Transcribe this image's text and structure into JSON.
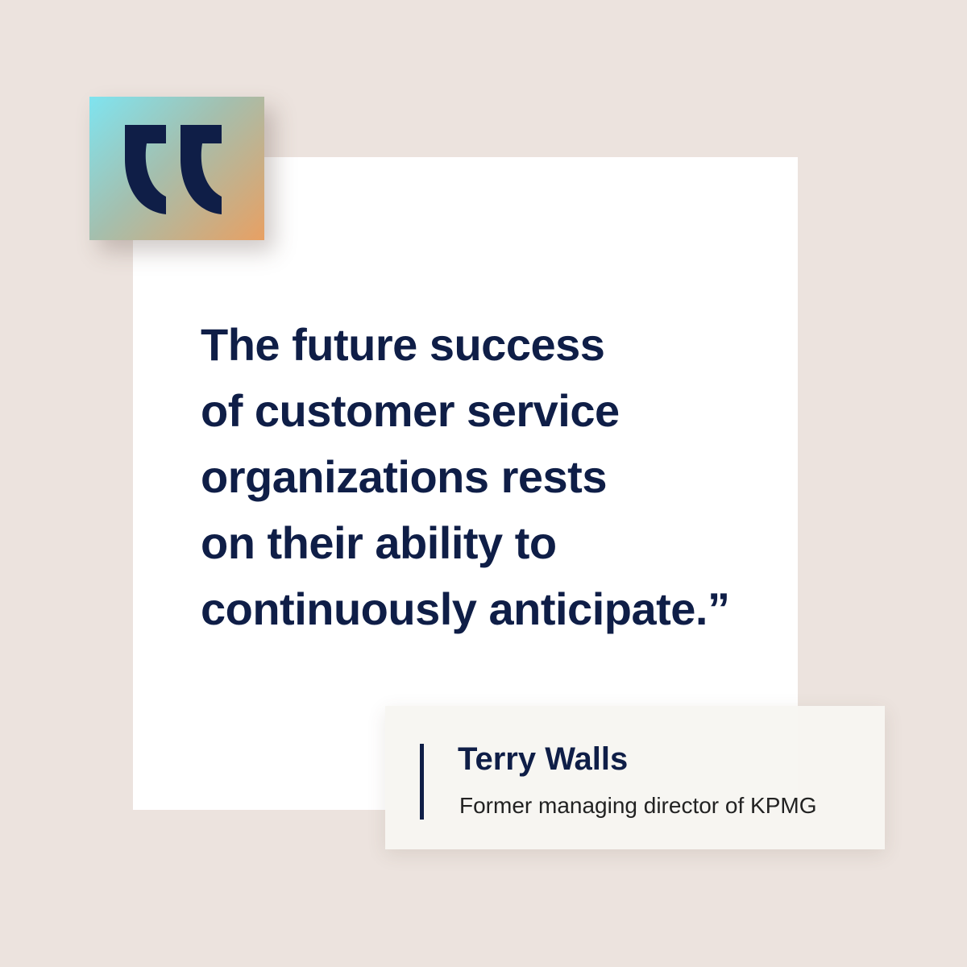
{
  "colors": {
    "background": "#ece3de",
    "card": "#ffffff",
    "text_navy": "#0f1e47",
    "badge_gradient_start": "#7fe4f0",
    "badge_gradient_end": "#e8a063"
  },
  "badge": {
    "icon": "opening-quote-icon"
  },
  "quote": {
    "lines": [
      "The future success",
      "of customer service",
      "organizations rests",
      "on their ability to",
      "continuously anticipate.”"
    ]
  },
  "attribution": {
    "name": "Terry Walls",
    "title": "Former managing director of KPMG"
  }
}
